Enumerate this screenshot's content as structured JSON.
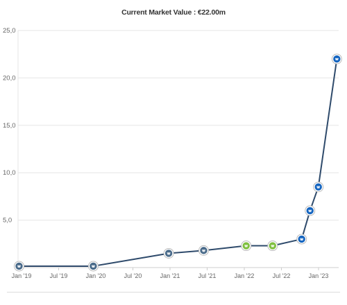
{
  "chart_data": {
    "type": "line",
    "title": "Current Market Value : €22.00m",
    "xlabel": "",
    "ylabel": "",
    "ylim": [
      0,
      25
    ],
    "y_ticks": [
      "",
      "5,0",
      "10,0",
      "15,0",
      "20,0",
      "25,0"
    ],
    "x_ticks": [
      "Jan '19",
      "Jul '19",
      "Jan '20",
      "Jul '20",
      "Jan '21",
      "Jul '21",
      "Jan '22",
      "Jul '22",
      "Jan '23"
    ],
    "grid": true,
    "legend": "none",
    "series": [
      {
        "values": [
          {
            "x": "2018-12-20",
            "y": 0.15,
            "club_color": "#4a6b8a"
          },
          {
            "x": "2019-12-20",
            "y": 0.15,
            "club_color": "#4a6b8a"
          },
          {
            "x": "2020-12-25",
            "y": 1.5,
            "club_color": "#4a6b8a"
          },
          {
            "x": "2021-06-15",
            "y": 1.8,
            "club_color": "#4a6b8a"
          },
          {
            "x": "2022-01-10",
            "y": 2.3,
            "club_color": "#7fbf3f"
          },
          {
            "x": "2022-05-20",
            "y": 2.3,
            "club_color": "#7fbf3f"
          },
          {
            "x": "2022-10-10",
            "y": 3.0,
            "club_color": "#1565c0"
          },
          {
            "x": "2022-11-20",
            "y": 6.0,
            "club_color": "#1565c0"
          },
          {
            "x": "2022-12-31",
            "y": 8.5,
            "club_color": "#1565c0"
          },
          {
            "x": "2023-04-01",
            "y": 22.0,
            "club_color": "#1565c0"
          }
        ]
      }
    ]
  },
  "colors": {
    "line": "#2e4a6b",
    "grid": "#e6e6e6",
    "axis": "#cccccc"
  }
}
